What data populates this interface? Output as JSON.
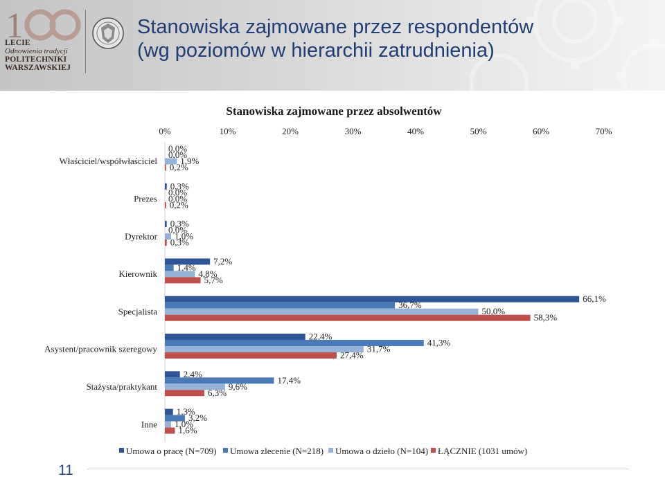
{
  "slide": {
    "title_line1": "Stanowiska zajmowane przez respondentów",
    "title_line2": "(wg poziomów w hierarchii zatrudnienia)",
    "page_number": "11"
  },
  "logo": {
    "line1": "LECIE",
    "line2": "Odnowienia tradycji",
    "line3": "POLITECHNIKI",
    "line4": "WARSZAWSKIEJ"
  },
  "colors": {
    "series": [
      "#2f5597",
      "#4a7ab8",
      "#95b3d7",
      "#c0504d"
    ],
    "title": "#1f3f74",
    "page_number": "#2b4a86"
  },
  "chart_data": {
    "type": "bar",
    "orientation": "horizontal",
    "title": "Stanowiska zajmowane przez absolwentów",
    "categories": [
      "Właściciel/współwłaściciel",
      "Prezes",
      "Dyrektor",
      "Kierownik",
      "Specjalista",
      "Asystent/pracownik szeregowy",
      "Stażysta/praktykant",
      "Inne"
    ],
    "series": [
      {
        "name": "Umowa o pracę (N=709)",
        "values": [
          0.0,
          0.3,
          0.3,
          7.2,
          66.1,
          22.4,
          2.4,
          1.3
        ]
      },
      {
        "name": "Umowa zlecenie (N=218)",
        "values": [
          0.0,
          0.0,
          0.0,
          1.4,
          36.7,
          41.3,
          17.4,
          3.2
        ]
      },
      {
        "name": "Umowa o dzieło (N=104)",
        "values": [
          1.9,
          0.0,
          1.0,
          4.8,
          50.0,
          31.7,
          9.6,
          1.0
        ]
      },
      {
        "name": "ŁĄCZNIE (1031 umów)",
        "values": [
          0.2,
          0.2,
          0.3,
          5.7,
          58.3,
          27.4,
          6.3,
          1.6
        ]
      }
    ],
    "labels": [
      [
        "0,0%",
        "0,3%",
        "0,3%",
        "7,2%",
        "66,1%",
        "22,4%",
        "2,4%",
        "1,3%"
      ],
      [
        "0,0%",
        "0,0%",
        "0,0%",
        "1,4%",
        "36,7%",
        "41,3%",
        "17,4%",
        "3,2%"
      ],
      [
        "1,9%",
        "0,0%",
        "1,0%",
        "4,8%",
        "50,0%",
        "31,7%",
        "9,6%",
        "1,0%"
      ],
      [
        "0,2%",
        "0,2%",
        "0,3%",
        "5,7%",
        "58,3%",
        "27,4%",
        "6,3%",
        "1,6%"
      ]
    ],
    "x_axis": {
      "position": "top",
      "min": 0,
      "max": 70,
      "step": 10,
      "tick_labels": [
        "0%",
        "10%",
        "20%",
        "30%",
        "40%",
        "50%",
        "60%",
        "70%"
      ]
    },
    "grid": false,
    "legend_position": "bottom"
  }
}
